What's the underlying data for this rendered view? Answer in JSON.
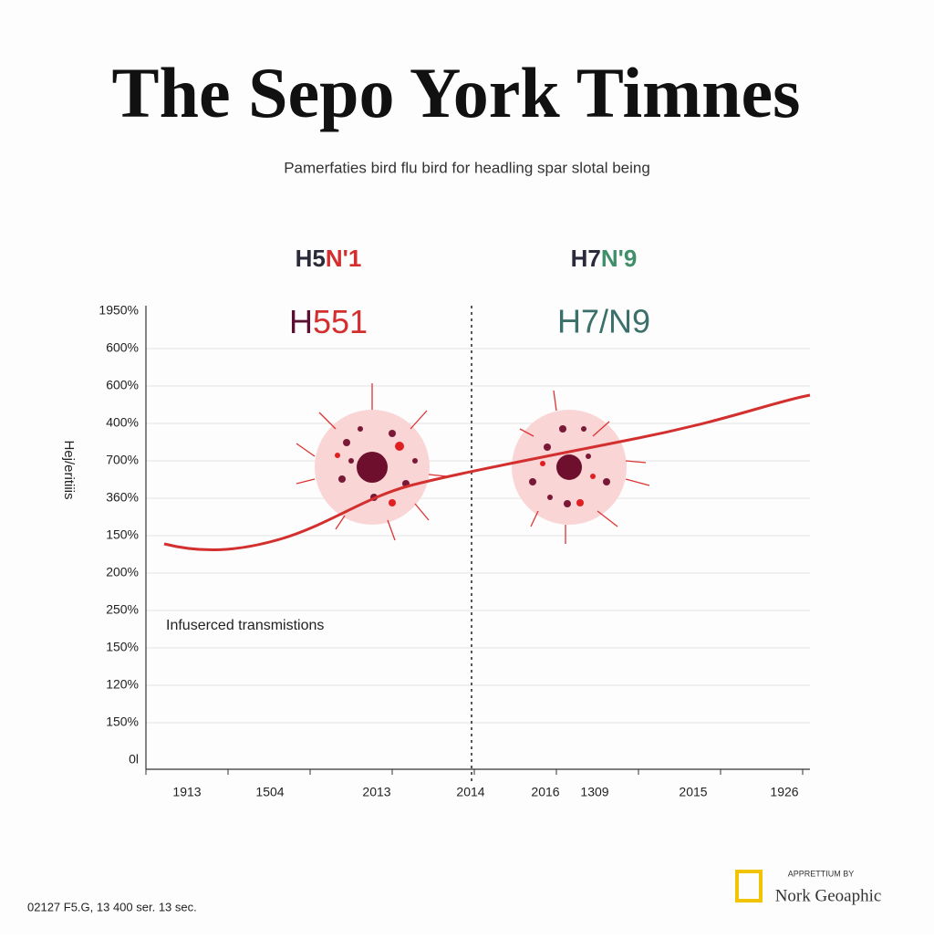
{
  "header": {
    "title": "The Sepo York Timnes",
    "subtitle": "Pamerfaties bird flu bird for headling spar slotal being"
  },
  "chart": {
    "labels": {
      "left_top": [
        "H5",
        "N'1"
      ],
      "left_mid": [
        "H",
        "551"
      ],
      "right_top": [
        "H7",
        "N'9"
      ],
      "right_mid": "H7/N9"
    },
    "y_axis_title": "Hej/eritiiis",
    "y_tick_labels": [
      "1950%",
      "600%",
      "600%",
      "400%",
      "700%",
      "360%",
      "150%",
      "200%",
      "250%",
      "150%",
      "120%",
      "150%",
      "0l"
    ],
    "x_tick_labels": [
      "1913",
      "1504",
      "2013",
      "2014",
      "2016",
      "1309",
      "2015",
      "1926"
    ],
    "annotation": "Infuserced transmistions"
  },
  "footer": {
    "left": "02127 F5.G,  13 400 ser. 13 sec.",
    "credit_small": "APPRETTIUM BY",
    "credit": "Nork Geoaphic"
  }
}
